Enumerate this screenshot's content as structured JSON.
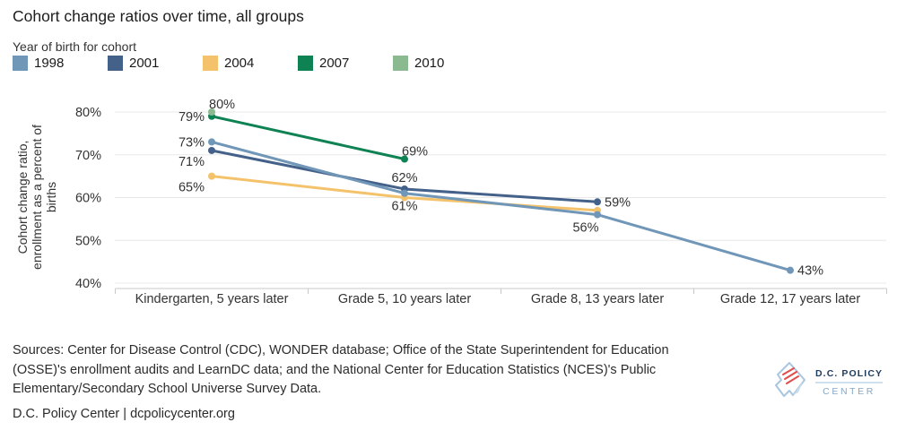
{
  "title": "Cohort change ratios over time, all groups",
  "legend": {
    "title": "Year of birth for cohort"
  },
  "chart_data": {
    "type": "line",
    "title": "Cohort change ratios over time, all groups",
    "categories": [
      "Kindergarten, 5 years later",
      "Grade 5, 10 years later",
      "Grade 8, 13 years later",
      "Grade 12, 17 years later"
    ],
    "series": [
      {
        "name": "1998",
        "color": "#7096b8",
        "values": [
          73,
          61,
          56,
          43
        ],
        "label_positions": [
          "left",
          "below",
          "below-left",
          "right"
        ]
      },
      {
        "name": "2001",
        "color": "#44618a",
        "values": [
          71,
          62,
          59
        ],
        "label_positions": [
          "left-low",
          "above",
          "right"
        ]
      },
      {
        "name": "2004",
        "color": "#f4c26a",
        "values": [
          65,
          60,
          57
        ],
        "label_positions": [
          "left-low",
          "",
          ""
        ]
      },
      {
        "name": "2007",
        "color": "#0f8254",
        "values": [
          79,
          69
        ],
        "label_positions": [
          "left",
          "above-right"
        ]
      },
      {
        "name": "2010",
        "color": "#8cba90",
        "values": [
          80
        ],
        "label_positions": [
          "above-right"
        ]
      }
    ],
    "ylabel": "Cohort change ratio, enrollment as a percent of births",
    "ylabel_lines": [
      "Cohort change ratio,",
      "enrollment as a percent of",
      "births"
    ],
    "yticks": [
      40,
      50,
      60,
      70,
      80
    ],
    "ylim": [
      40,
      83
    ],
    "value_suffix": "%",
    "grid": true,
    "legend_position": "top-left"
  },
  "footer": {
    "sources_lines": [
      "Sources: Center for Disease Control (CDC), WONDER database; Office of the State Superintendent for Education",
      "(OSSE)'s enrollment audits and LearnDC data; and the National Center for Education Statistics (NCES)'s Public",
      "Elementary/Secondary School Universe Survey Data."
    ],
    "credit": "D.C. Policy Center | dcpolicycenter.org"
  },
  "logo": {
    "org": "D.C. POLICY",
    "unit": "CENTER"
  }
}
